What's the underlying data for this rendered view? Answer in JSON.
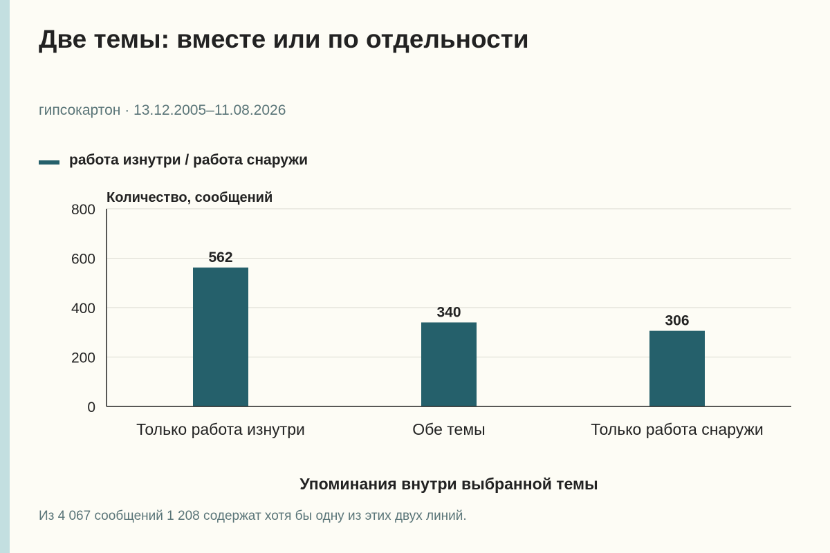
{
  "page": {
    "title": "Две темы: вместе или по отдельности",
    "subtitle": "гипсокартон · 13.12.2005–11.08.2026",
    "footnote": "Из 4 067 сообщений 1 208 содержат хотя бы одну из этих двух линий."
  },
  "colors": {
    "bar": "#25606b",
    "grid": "#d9d9d0",
    "axis": "#222222"
  },
  "chart_data": {
    "type": "bar",
    "title": "Две темы: вместе или по отдельности",
    "categories": [
      "Только работа изнутри",
      "Обе темы",
      "Только работа снаружи"
    ],
    "series": [
      {
        "name": "работа изнутри / работа снаружи",
        "values": [
          562,
          340,
          306
        ]
      }
    ],
    "data_labels": [
      "562",
      "340",
      "306"
    ],
    "xlabel": "Упоминания внутри выбранной темы",
    "ylabel": "Количество, сообщений",
    "ylim": [
      0,
      800
    ],
    "yticks": [
      0,
      200,
      400,
      600,
      800
    ],
    "ytick_labels": [
      "0",
      "200",
      "400",
      "600",
      "800"
    ],
    "grid": true,
    "legend_position": "top-left"
  }
}
